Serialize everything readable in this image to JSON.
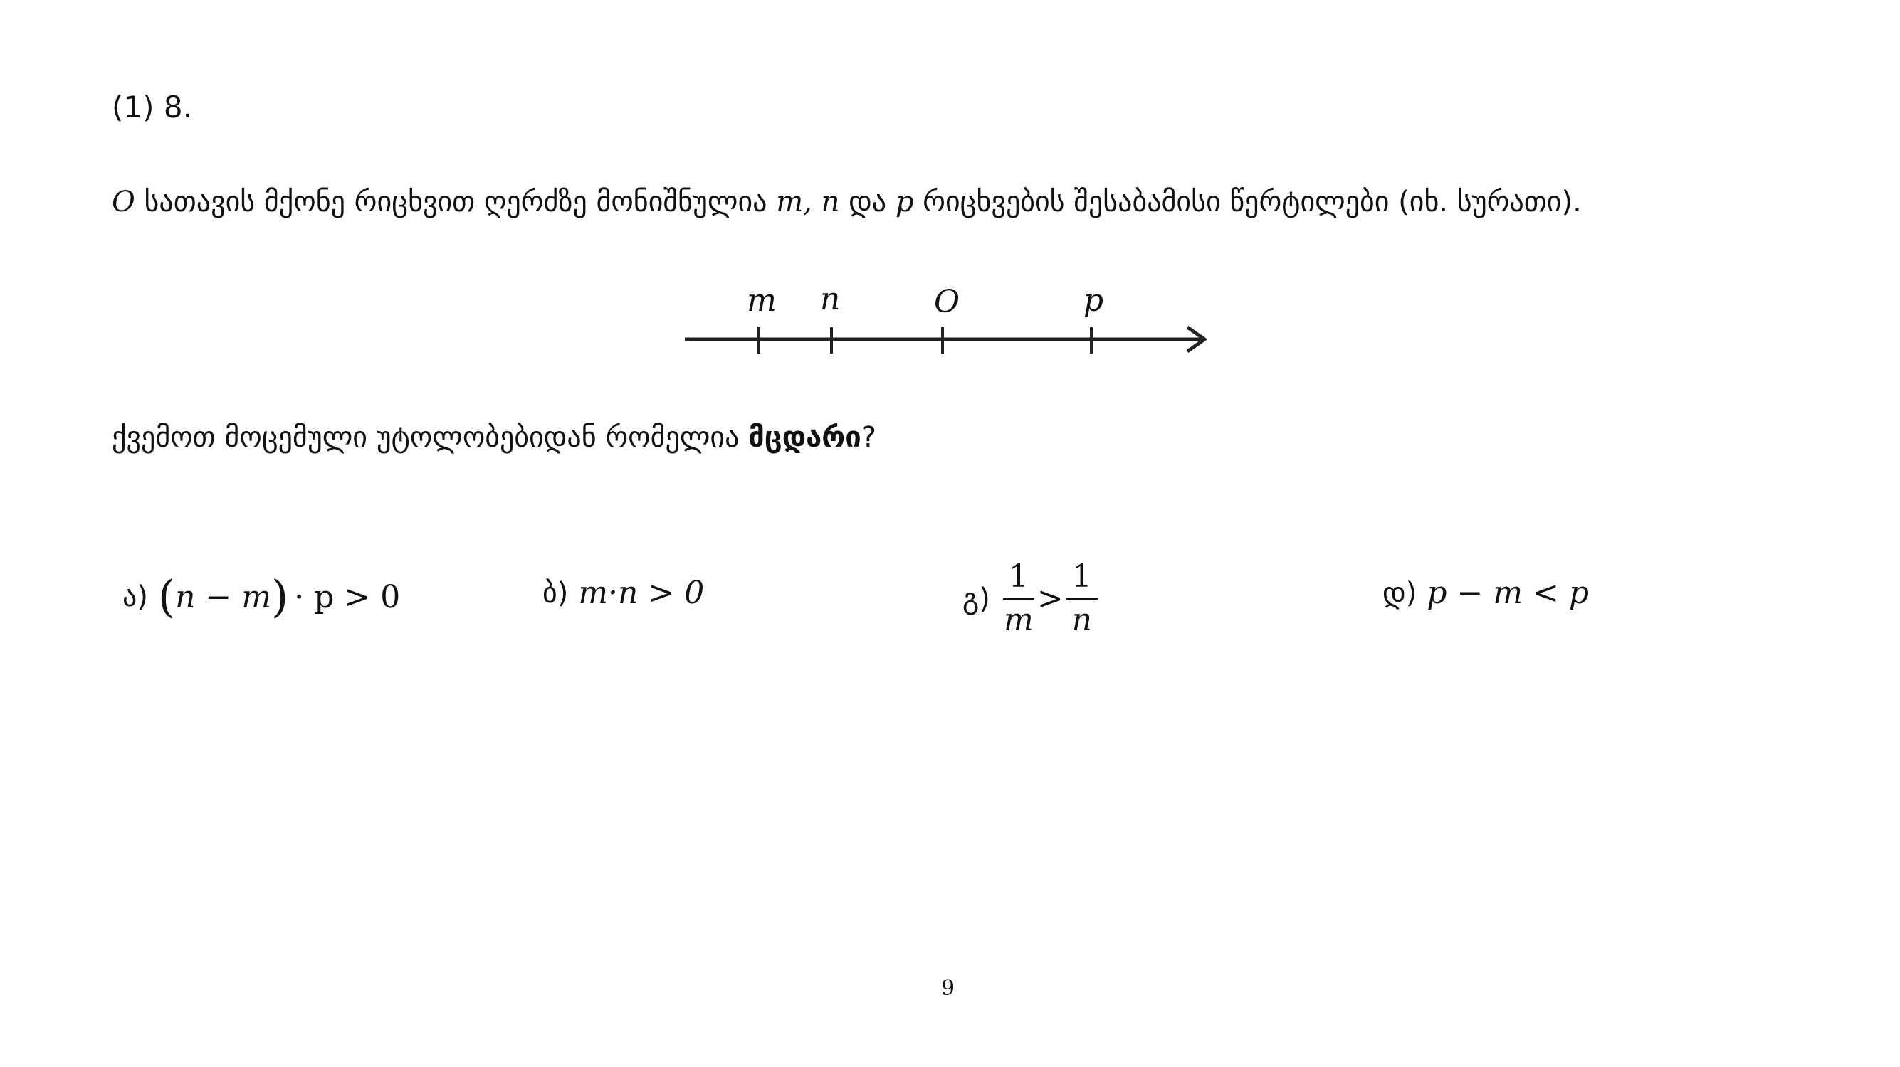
{
  "problem": {
    "number": "(1) 8.",
    "stem_O": "O",
    "stem_text_1": "სათავის მქონე რიცხვით ღერძზე მონიშნულია",
    "stem_vars_mn": "m, n",
    "stem_and": "და",
    "stem_var_p": "p",
    "stem_text_2": "რიცხვების შესაბამისი წერტილები (იხ. სურათი)."
  },
  "number_line": {
    "labels": [
      "m",
      "n",
      "O",
      "p"
    ]
  },
  "question": {
    "text": "ქვემოთ მოცემული უტოლობებიდან რომელია",
    "bold": "მცდარი",
    "end": "?"
  },
  "options": [
    {
      "label": "ა)",
      "lparen": "(",
      "inner": "n − m",
      "rparen": ")",
      "rest": "· p > 0"
    },
    {
      "label": "ბ)",
      "expr": "m·n > 0"
    },
    {
      "label": "გ)",
      "num1": "1",
      "den1": "m",
      "op": ">",
      "num2": "1",
      "den2": "n"
    },
    {
      "label": "დ)",
      "expr": "p − m < p"
    }
  ],
  "page_number": "9"
}
